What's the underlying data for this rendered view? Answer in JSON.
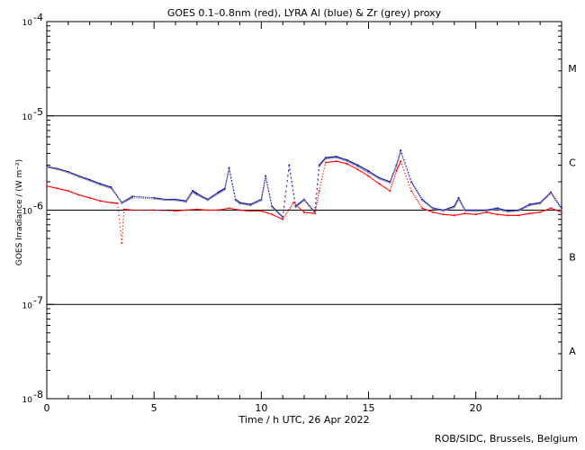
{
  "chart_data": {
    "type": "scatter",
    "title": "GOES 0.1–0.8nm (red), LYRA Al (blue) & Zr (grey) proxy",
    "xlabel": "Time / h UTC, 26 Apr 2022",
    "ylabel": "GOES Irradiance / (W m⁻²)",
    "xlim": [
      0,
      24
    ],
    "ylim": [
      1e-08,
      0.0001
    ],
    "yscale": "log",
    "x_ticks": [
      0,
      5,
      10,
      15,
      20
    ],
    "y_tick_labels": [
      {
        "base": "10",
        "exp": "-4"
      },
      {
        "base": "10",
        "exp": "-5"
      },
      {
        "base": "10",
        "exp": "-6"
      },
      {
        "base": "10",
        "exp": "-7"
      },
      {
        "base": "10",
        "exp": "-8"
      }
    ],
    "y_tick_values": [
      0.0001,
      1e-05,
      1e-06,
      1e-07,
      1e-08
    ],
    "reference_lines": [
      1e-05,
      1e-06,
      1e-07
    ],
    "flare_classes": [
      {
        "label": "M",
        "y": 3.2e-05
      },
      {
        "label": "C",
        "y": 3.2e-06
      },
      {
        "label": "B",
        "y": 3.2e-07
      },
      {
        "label": "A",
        "y": 3.2e-08
      }
    ],
    "colors": {
      "goes": "#ff0000",
      "lyra_al": "#0000cc",
      "lyra_zr": "#888888",
      "axis": "#000000"
    },
    "series": [
      {
        "key": "goes",
        "points": [
          [
            0,
            1.8e-06
          ],
          [
            0.5,
            1.7e-06
          ],
          [
            1,
            1.6e-06
          ],
          [
            1.5,
            1.45e-06
          ],
          [
            2,
            1.35e-06
          ],
          [
            2.5,
            1.25e-06
          ],
          [
            3,
            1.2e-06
          ],
          [
            3.3,
            1.18e-06
          ],
          [
            3.5,
            4.5e-07
          ],
          [
            3.6,
            1.02e-06
          ],
          [
            4,
            1e-06
          ],
          [
            5,
            1e-06
          ],
          [
            6,
            9.8e-07
          ],
          [
            6.5,
            1e-06
          ],
          [
            7,
            1.02e-06
          ],
          [
            7.5,
            1e-06
          ],
          [
            8,
            1e-06
          ],
          [
            8.5,
            1.05e-06
          ],
          [
            9,
            1e-06
          ],
          [
            9.5,
            9.8e-07
          ],
          [
            10,
            9.8e-07
          ],
          [
            10.5,
            9e-07
          ],
          [
            11,
            8e-07
          ],
          [
            11.5,
            1.2e-06
          ],
          [
            12,
            9.5e-07
          ],
          [
            12.5,
            9.2e-07
          ],
          [
            12.7,
            1.6e-06
          ],
          [
            13,
            3.2e-06
          ],
          [
            13.5,
            3.3e-06
          ],
          [
            14,
            3.1e-06
          ],
          [
            14.5,
            2.7e-06
          ],
          [
            15,
            2.3e-06
          ],
          [
            15.5,
            1.9e-06
          ],
          [
            16,
            1.6e-06
          ],
          [
            16.3,
            2.6e-06
          ],
          [
            16.5,
            3.3e-06
          ],
          [
            17,
            1.6e-06
          ],
          [
            17.5,
            1.05e-06
          ],
          [
            18,
            9.5e-07
          ],
          [
            18.5,
            9e-07
          ],
          [
            19,
            8.8e-07
          ],
          [
            19.5,
            9.2e-07
          ],
          [
            20,
            9e-07
          ],
          [
            20.5,
            9.5e-07
          ],
          [
            21,
            9e-07
          ],
          [
            21.5,
            8.8e-07
          ],
          [
            22,
            8.8e-07
          ],
          [
            22.5,
            9.2e-07
          ],
          [
            23,
            9.5e-07
          ],
          [
            23.5,
            1.05e-06
          ],
          [
            24,
            9.5e-07
          ]
        ]
      },
      {
        "key": "lyra_al",
        "points": [
          [
            0,
            2.9e-06
          ],
          [
            0.5,
            2.75e-06
          ],
          [
            1,
            2.55e-06
          ],
          [
            1.5,
            2.3e-06
          ],
          [
            2,
            2.1e-06
          ],
          [
            2.5,
            1.9e-06
          ],
          [
            3,
            1.75e-06
          ],
          [
            3.5,
            1.2e-06
          ],
          [
            4,
            1.4e-06
          ],
          [
            5,
            1.35e-06
          ],
          [
            5.5,
            1.3e-06
          ],
          [
            6,
            1.3e-06
          ],
          [
            6.5,
            1.25e-06
          ],
          [
            6.8,
            1.6e-06
          ],
          [
            7,
            1.5e-06
          ],
          [
            7.5,
            1.3e-06
          ],
          [
            8,
            1.55e-06
          ],
          [
            8.3,
            1.7e-06
          ],
          [
            8.5,
            2.8e-06
          ],
          [
            8.8,
            1.3e-06
          ],
          [
            9,
            1.2e-06
          ],
          [
            9.5,
            1.15e-06
          ],
          [
            10,
            1.3e-06
          ],
          [
            10.2,
            2.3e-06
          ],
          [
            10.5,
            1.1e-06
          ],
          [
            11,
            8.5e-07
          ],
          [
            11.3,
            3e-06
          ],
          [
            11.6,
            1.1e-06
          ],
          [
            12,
            1.3e-06
          ],
          [
            12.5,
            9.5e-07
          ],
          [
            12.7,
            3e-06
          ],
          [
            13,
            3.6e-06
          ],
          [
            13.5,
            3.7e-06
          ],
          [
            14,
            3.4e-06
          ],
          [
            14.5,
            3e-06
          ],
          [
            15,
            2.6e-06
          ],
          [
            15.5,
            2.2e-06
          ],
          [
            16,
            2e-06
          ],
          [
            16.3,
            3e-06
          ],
          [
            16.5,
            4.3e-06
          ],
          [
            17,
            2e-06
          ],
          [
            17.5,
            1.3e-06
          ],
          [
            18,
            1.05e-06
          ],
          [
            18.5,
            1e-06
          ],
          [
            19,
            1.1e-06
          ],
          [
            19.2,
            1.35e-06
          ],
          [
            19.5,
            1e-06
          ],
          [
            20,
            1e-06
          ],
          [
            20.5,
            1e-06
          ],
          [
            21,
            1.05e-06
          ],
          [
            21.5,
            9.8e-07
          ],
          [
            22,
            1e-06
          ],
          [
            22.5,
            1.15e-06
          ],
          [
            23,
            1.2e-06
          ],
          [
            23.5,
            1.55e-06
          ],
          [
            24,
            1.05e-06
          ]
        ]
      },
      {
        "key": "lyra_zr",
        "points": [
          [
            0,
            2.85e-06
          ],
          [
            0.5,
            2.7e-06
          ],
          [
            1,
            2.5e-06
          ],
          [
            1.5,
            2.25e-06
          ],
          [
            2,
            2.05e-06
          ],
          [
            2.5,
            1.85e-06
          ],
          [
            3,
            1.7e-06
          ],
          [
            3.5,
            1.18e-06
          ],
          [
            4,
            1.35e-06
          ],
          [
            5,
            1.32e-06
          ],
          [
            5.5,
            1.28e-06
          ],
          [
            6,
            1.27e-06
          ],
          [
            6.5,
            1.22e-06
          ],
          [
            6.8,
            1.55e-06
          ],
          [
            7,
            1.45e-06
          ],
          [
            7.5,
            1.27e-06
          ],
          [
            8,
            1.5e-06
          ],
          [
            8.3,
            1.65e-06
          ],
          [
            8.5,
            2.7e-06
          ],
          [
            8.8,
            1.27e-06
          ],
          [
            9,
            1.17e-06
          ],
          [
            9.5,
            1.12e-06
          ],
          [
            10,
            1.27e-06
          ],
          [
            10.2,
            2.2e-06
          ],
          [
            10.5,
            1.07e-06
          ],
          [
            11,
            8.3e-07
          ],
          [
            11.3,
            2.9e-06
          ],
          [
            11.6,
            1.07e-06
          ],
          [
            12,
            1.27e-06
          ],
          [
            12.5,
            9.3e-07
          ],
          [
            12.7,
            2.9e-06
          ],
          [
            13,
            3.5e-06
          ],
          [
            13.5,
            3.6e-06
          ],
          [
            14,
            3.3e-06
          ],
          [
            14.5,
            2.9e-06
          ],
          [
            15,
            2.5e-06
          ],
          [
            15.5,
            2.15e-06
          ],
          [
            16,
            1.95e-06
          ],
          [
            16.3,
            2.9e-06
          ],
          [
            16.5,
            4.1e-06
          ],
          [
            17,
            1.95e-06
          ],
          [
            17.5,
            1.27e-06
          ],
          [
            18,
            1.03e-06
          ],
          [
            18.5,
            9.8e-07
          ],
          [
            19,
            1.07e-06
          ],
          [
            19.2,
            1.3e-06
          ],
          [
            19.5,
            9.8e-07
          ],
          [
            20,
            9.8e-07
          ],
          [
            20.5,
            9.8e-07
          ],
          [
            21,
            1.02e-06
          ],
          [
            21.5,
            9.6e-07
          ],
          [
            22,
            9.8e-07
          ],
          [
            22.5,
            1.12e-06
          ],
          [
            23,
            1.17e-06
          ],
          [
            23.5,
            1.5e-06
          ],
          [
            24,
            1.02e-06
          ]
        ]
      }
    ]
  },
  "footer": {
    "credit": "ROB/SIDC, Brussels, Belgium"
  }
}
